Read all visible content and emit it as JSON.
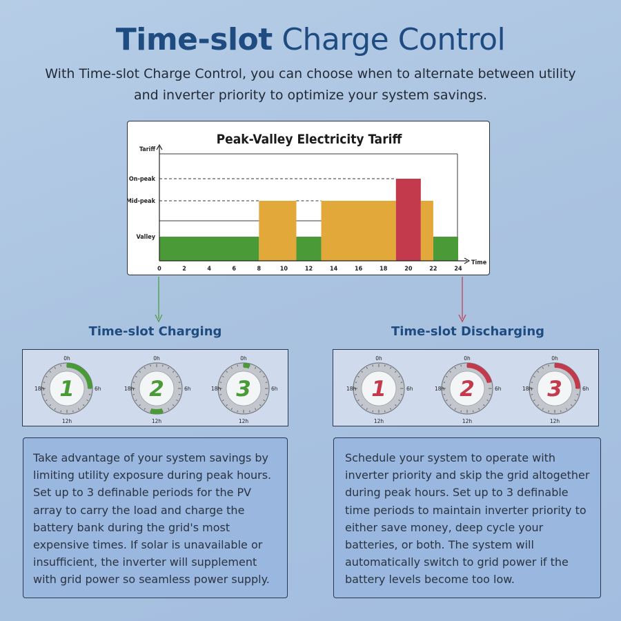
{
  "header": {
    "title_bold": "Time-slot",
    "title_rest": " Charge Control",
    "subtitle": "With Time-slot Charge Control, you can choose when to alternate between utility and inverter priority to optimize your system savings."
  },
  "chart_data": {
    "type": "bar",
    "title": "Peak-Valley Electricity Tariff",
    "ylabel": "Tariff",
    "xlabel": "Time",
    "y_levels": [
      "Valley",
      "Mid-peak",
      "On-peak"
    ],
    "x_ticks": [
      "0",
      "2",
      "4",
      "6",
      "8",
      "10",
      "12",
      "14",
      "16",
      "18",
      "20",
      "22",
      "24"
    ],
    "xlim": [
      0,
      24
    ],
    "segments": [
      {
        "start": 0,
        "end": 8,
        "level": "Valley"
      },
      {
        "start": 8,
        "end": 11,
        "level": "Mid-peak"
      },
      {
        "start": 11,
        "end": 13,
        "level": "Valley"
      },
      {
        "start": 13,
        "end": 19,
        "level": "Mid-peak"
      },
      {
        "start": 19,
        "end": 21,
        "level": "On-peak"
      },
      {
        "start": 21,
        "end": 22,
        "level": "Mid-peak"
      },
      {
        "start": 22,
        "end": 24,
        "level": "Valley"
      }
    ],
    "colors": {
      "Valley": "#4a9a38",
      "Mid-peak": "#e3a83a",
      "On-peak": "#c23a4c"
    }
  },
  "charging": {
    "title": "Time-slot Charging",
    "clock_labels": {
      "top": "0h",
      "right": "6h",
      "bottom": "12h",
      "left": "18h"
    },
    "clocks": [
      {
        "number": "1",
        "arcs": [
          [
            0,
            6
          ]
        ]
      },
      {
        "number": "2",
        "arcs": [
          [
            11,
            13
          ]
        ]
      },
      {
        "number": "3",
        "arcs": [
          [
            0,
            1
          ]
        ]
      }
    ],
    "color": "#4a9a38",
    "description": "Take advantage of your system savings by limiting utility exposure during peak hours. Set up to 3 definable periods for the PV array to carry the load and charge the battery bank during the grid's most expensive times. If solar is unavailable or insufficient, the inverter will supplement with grid power so seamless power supply."
  },
  "discharging": {
    "title": "Time-slot Discharging",
    "clock_labels": {
      "top": "0h",
      "right": "6h",
      "bottom": "12h",
      "left": "18h"
    },
    "clocks": [
      {
        "number": "1",
        "arcs": []
      },
      {
        "number": "2",
        "arcs": [
          [
            0,
            5
          ]
        ]
      },
      {
        "number": "3",
        "arcs": [
          [
            0,
            6
          ]
        ]
      }
    ],
    "color": "#c23a4c",
    "description": "Schedule your system to operate with inverter priority and skip the grid altogether during peak hours. Set up to 3 definable time periods to maintain inverter priority to either save money, deep cycle your batteries, or both. The system will automatically switch to grid power if the battery levels become too low."
  }
}
